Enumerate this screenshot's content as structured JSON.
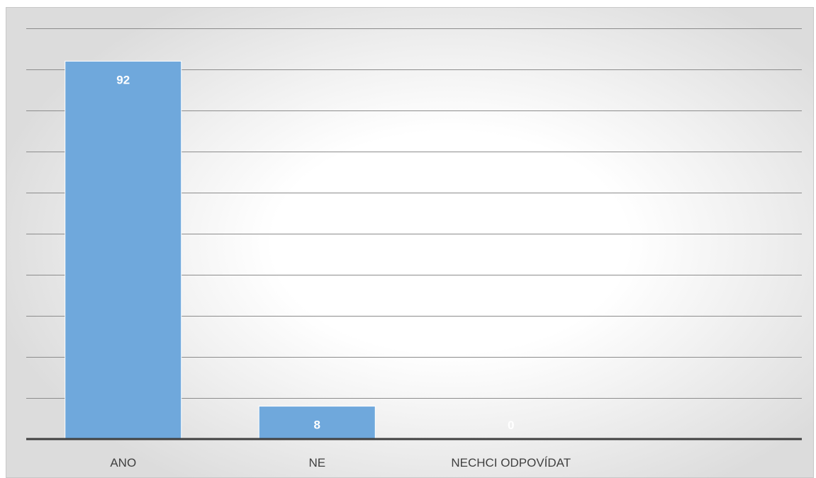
{
  "chart_data": {
    "type": "bar",
    "categories": [
      "ANO",
      "NE",
      "NECHCI ODPOVÍDAT"
    ],
    "values": [
      92,
      8,
      0
    ],
    "data_labels": [
      "92",
      "8",
      "0"
    ],
    "title": "",
    "xlabel": "",
    "ylabel": "",
    "ylim": [
      0,
      100
    ],
    "grid": true,
    "legend": "none",
    "colors": {
      "bar": "#6fa8dc",
      "bar_outline": "#ffffff",
      "data_label": "#ffffff",
      "gridline": "#8c8c8c",
      "axis": "#404040",
      "tick_label": "#404040"
    }
  }
}
